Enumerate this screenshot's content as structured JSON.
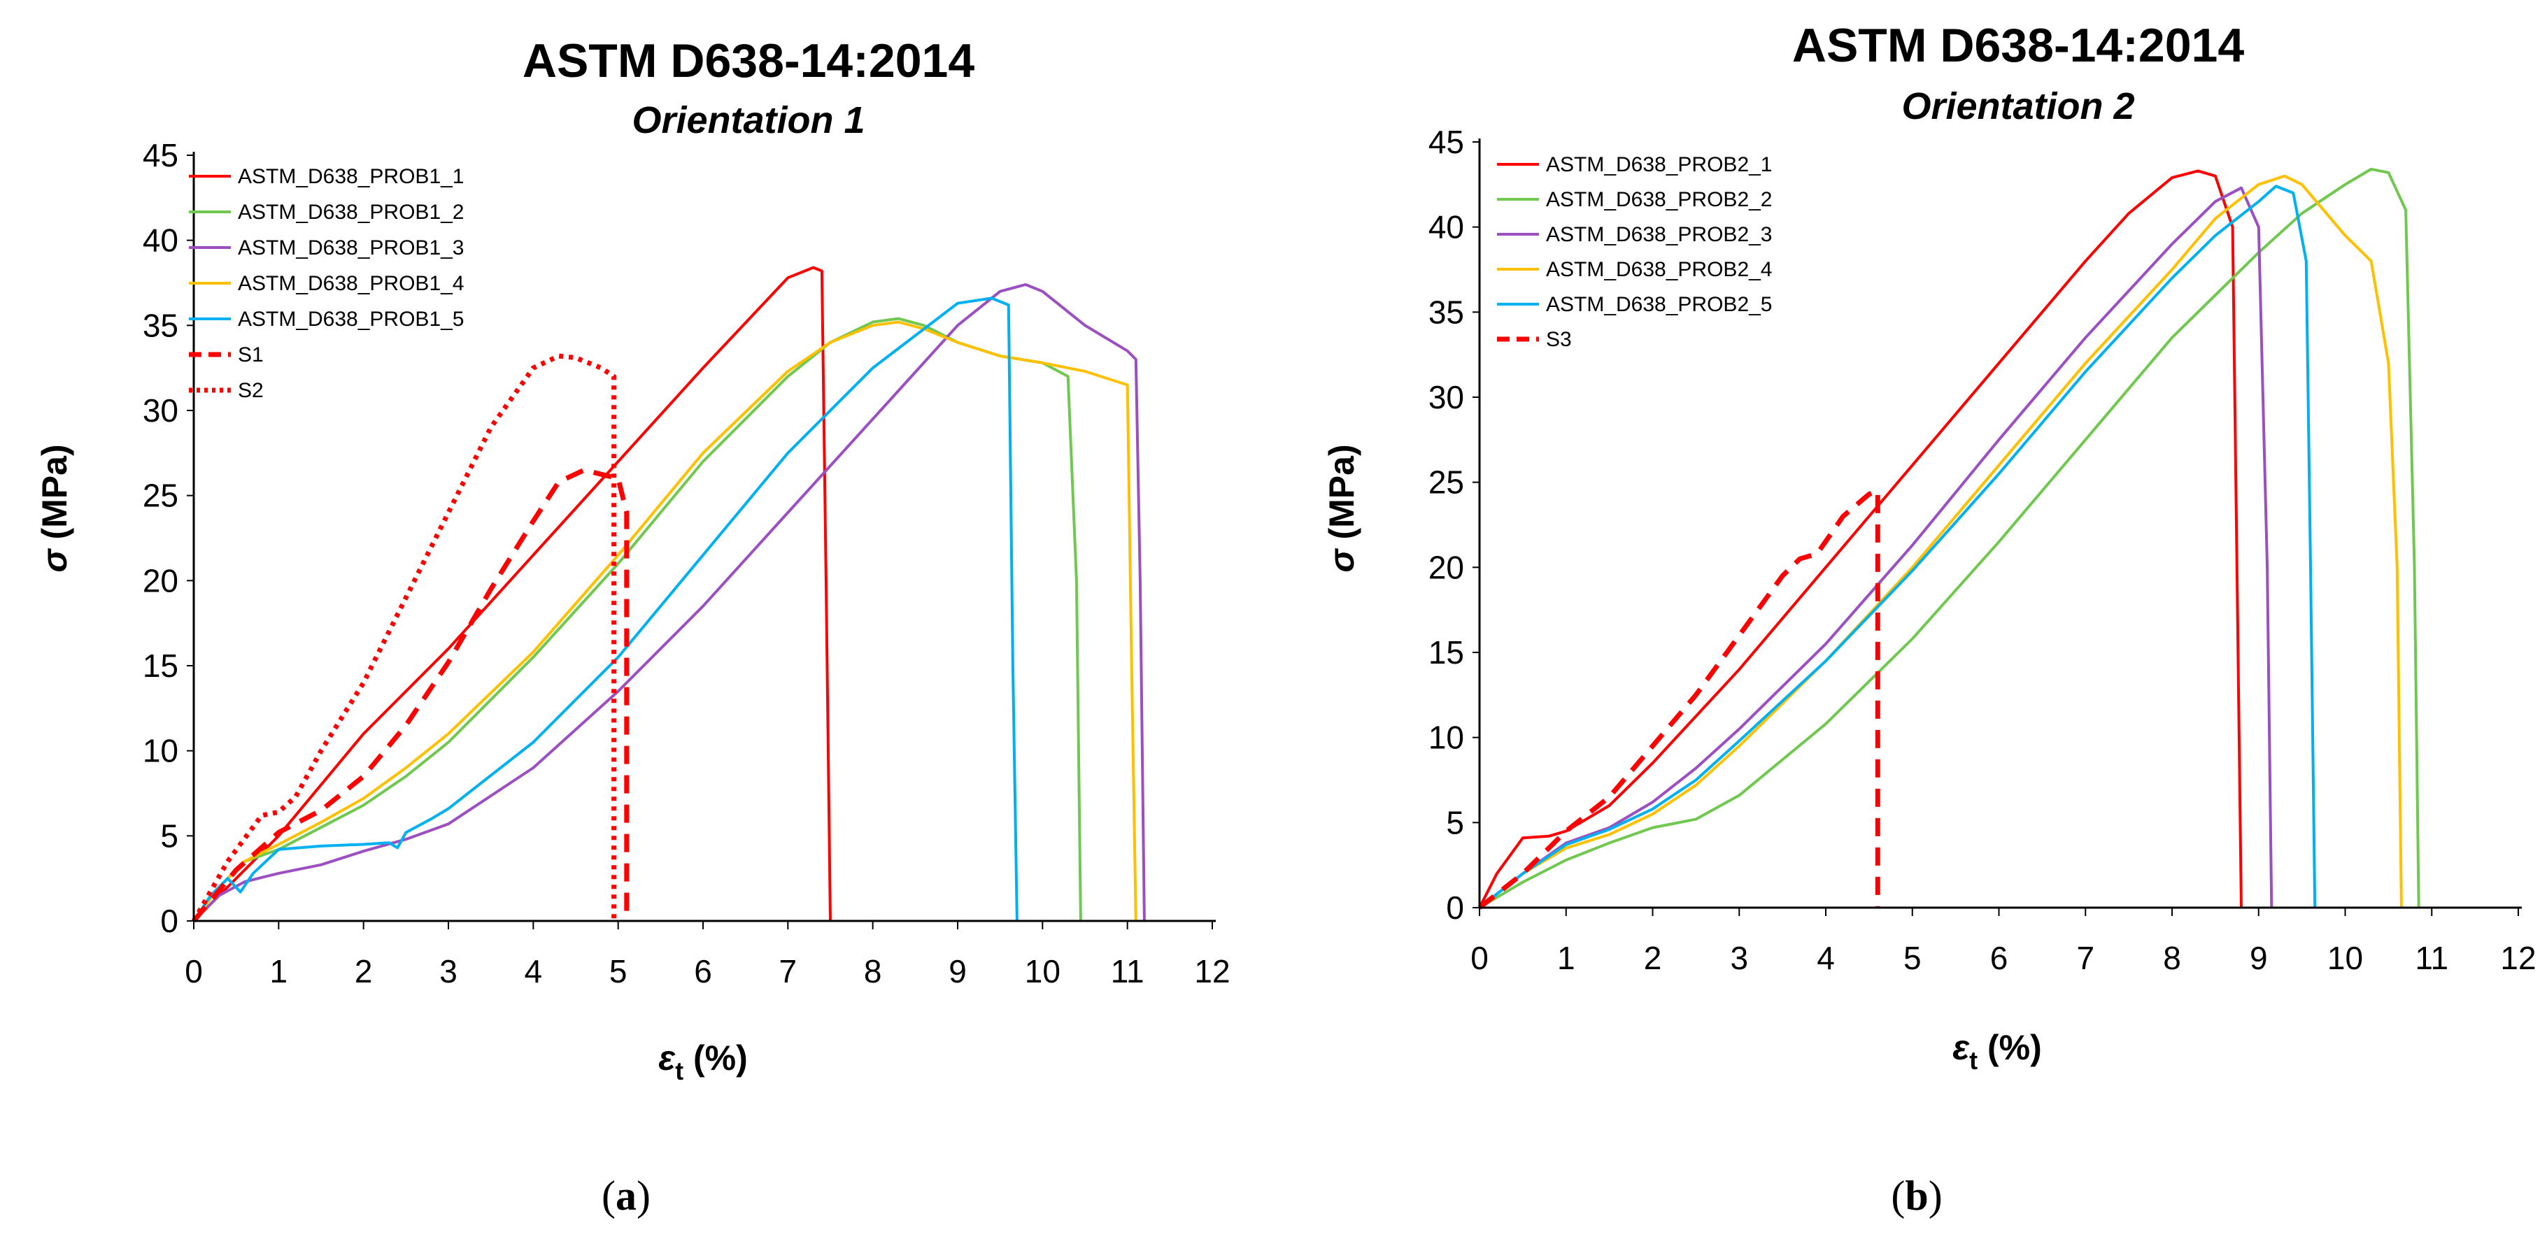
{
  "figure": {
    "panel_labels": [
      {
        "open": "(",
        "letter": "a",
        "close": ")"
      },
      {
        "open": "(",
        "letter": "b",
        "close": ")"
      }
    ]
  },
  "chart_data": [
    {
      "type": "line",
      "title": "ASTM D638-14:2014",
      "subtitle": "Orientation 1",
      "xlabel": "εt (%)",
      "xlabel_symbol": "ε",
      "xlabel_subscript": "t",
      "xlabel_unit": "(%)",
      "ylabel": "σ (MPa)",
      "ylabel_symbol": "σ",
      "ylabel_unit": "(MPa)",
      "xlim": [
        0,
        12
      ],
      "ylim": [
        0,
        45
      ],
      "xticks": [
        0,
        1,
        2,
        3,
        4,
        5,
        6,
        7,
        8,
        9,
        10,
        11,
        12
      ],
      "yticks": [
        0,
        5,
        10,
        15,
        20,
        25,
        30,
        35,
        40,
        45
      ],
      "legend_position": "top-left",
      "series": [
        {
          "name": "ASTM_D638_PROB1_1",
          "color": "#ff0000",
          "style": "solid",
          "x": [
            0,
            0.3,
            0.6,
            1.0,
            1.5,
            2.0,
            3.0,
            4.0,
            5.0,
            6.0,
            7.0,
            7.3,
            7.4,
            7.45,
            7.5
          ],
          "y": [
            0,
            1.5,
            3,
            5,
            8,
            11,
            16,
            21.5,
            27,
            32.5,
            37.8,
            38.4,
            38.2,
            20,
            0
          ]
        },
        {
          "name": "ASTM_D638_PROB1_2",
          "color": "#70c850",
          "style": "solid",
          "x": [
            0,
            0.3,
            0.6,
            1.0,
            1.5,
            2.0,
            2.5,
            3.0,
            4.0,
            5.0,
            6.0,
            7.0,
            7.5,
            8.0,
            8.3,
            8.6,
            9.0,
            9.5,
            10.0,
            10.3,
            10.4,
            10.45
          ],
          "y": [
            0,
            2,
            3.5,
            4.2,
            5.5,
            6.8,
            8.5,
            10.5,
            15.5,
            21,
            27,
            32,
            34,
            35.2,
            35.4,
            35,
            34,
            33.2,
            32.8,
            32,
            20,
            0
          ]
        },
        {
          "name": "ASTM_D638_PROB1_3",
          "color": "#9b4fc0",
          "style": "solid",
          "x": [
            0,
            0.3,
            0.6,
            1.0,
            1.5,
            2.0,
            2.5,
            3.0,
            4.0,
            5.0,
            6.0,
            7.0,
            8.0,
            9.0,
            9.5,
            9.8,
            10.0,
            10.5,
            11.0,
            11.1,
            11.15,
            11.2
          ],
          "y": [
            0,
            1.5,
            2.3,
            2.8,
            3.3,
            4.1,
            4.8,
            5.7,
            9,
            13.5,
            18.5,
            24,
            29.5,
            35,
            37,
            37.4,
            37,
            35,
            33.5,
            33,
            20,
            0
          ]
        },
        {
          "name": "ASTM_D638_PROB1_4",
          "color": "#ffc000",
          "style": "solid",
          "x": [
            0,
            0.3,
            0.6,
            1.0,
            1.5,
            2.0,
            2.5,
            3.0,
            4.0,
            5.0,
            6.0,
            7.0,
            7.5,
            8.0,
            8.3,
            8.6,
            9.0,
            9.5,
            10.0,
            10.5,
            11.0,
            11.05,
            11.1
          ],
          "y": [
            0,
            2,
            3.5,
            4.5,
            5.8,
            7.2,
            9,
            11,
            15.8,
            21.5,
            27.5,
            32.3,
            34,
            35,
            35.2,
            34.8,
            34,
            33.2,
            32.8,
            32.3,
            31.5,
            15,
            0
          ]
        },
        {
          "name": "ASTM_D638_PROB1_5",
          "color": "#00b0f0",
          "style": "solid",
          "x": [
            0,
            0.2,
            0.4,
            0.55,
            0.7,
            1.0,
            1.5,
            2.0,
            2.3,
            2.4,
            2.5,
            2.8,
            3.0,
            4.0,
            5.0,
            6.0,
            7.0,
            8.0,
            9.0,
            9.4,
            9.6,
            9.65,
            9.7
          ],
          "y": [
            0,
            1.5,
            2.5,
            1.7,
            2.8,
            4.2,
            4.4,
            4.5,
            4.6,
            4.3,
            5.2,
            6.0,
            6.6,
            10.5,
            15.5,
            21.5,
            27.5,
            32.5,
            36.3,
            36.6,
            36.2,
            15,
            0
          ]
        },
        {
          "name": "S1",
          "color": "#ff0000",
          "style": "dashed",
          "x": [
            0,
            0.5,
            1.0,
            1.5,
            2.0,
            2.5,
            3.0,
            3.5,
            4.0,
            4.3,
            4.6,
            5.0,
            5.1,
            5.1
          ],
          "y": [
            0,
            3,
            5.2,
            6.5,
            8.5,
            11.5,
            15.2,
            19.5,
            23.5,
            25.8,
            26.5,
            26,
            24,
            0
          ]
        },
        {
          "name": "S2",
          "color": "#ff0000",
          "style": "dotted",
          "x": [
            0,
            0.4,
            0.8,
            1.0,
            1.2,
            1.5,
            2.0,
            2.5,
            3.0,
            3.5,
            4.0,
            4.3,
            4.5,
            4.8,
            4.95,
            4.95
          ],
          "y": [
            0,
            3.5,
            6.2,
            6.4,
            7.3,
            10,
            14,
            19,
            24,
            29,
            32.5,
            33.2,
            33.1,
            32.5,
            32,
            0
          ]
        }
      ]
    },
    {
      "type": "line",
      "title": "ASTM D638-14:2014",
      "subtitle": "Orientation 2",
      "xlabel": "εt (%)",
      "xlabel_symbol": "ε",
      "xlabel_subscript": "t",
      "xlabel_unit": "(%)",
      "ylabel": "σ (MPa)",
      "ylabel_symbol": "σ",
      "ylabel_unit": "(MPa)",
      "xlim": [
        0,
        12
      ],
      "ylim": [
        0,
        45
      ],
      "xticks": [
        0,
        1,
        2,
        3,
        4,
        5,
        6,
        7,
        8,
        9,
        10,
        11,
        12
      ],
      "yticks": [
        0,
        5,
        10,
        15,
        20,
        25,
        30,
        35,
        40,
        45
      ],
      "legend_position": "top-left",
      "series": [
        {
          "name": "ASTM_D638_PROB2_1",
          "color": "#ff0000",
          "style": "solid",
          "x": [
            0,
            0.2,
            0.5,
            0.8,
            1.0,
            1.5,
            2.0,
            3.0,
            4.0,
            5.0,
            6.0,
            7.0,
            7.5,
            8.0,
            8.3,
            8.5,
            8.7,
            8.75,
            8.8
          ],
          "y": [
            0,
            2,
            4.1,
            4.2,
            4.5,
            6,
            8.5,
            14,
            20,
            26,
            32,
            38,
            40.8,
            42.9,
            43.3,
            43,
            40,
            20,
            0
          ]
        },
        {
          "name": "ASTM_D638_PROB2_2",
          "color": "#70c850",
          "style": "solid",
          "x": [
            0,
            0.5,
            1.0,
            1.5,
            2.0,
            2.5,
            3.0,
            4.0,
            5.0,
            6.0,
            7.0,
            8.0,
            9.0,
            9.5,
            10.0,
            10.3,
            10.5,
            10.7,
            10.8,
            10.85
          ],
          "y": [
            0,
            1.5,
            2.8,
            3.8,
            4.7,
            5.2,
            6.6,
            10.8,
            15.8,
            21.5,
            27.5,
            33.5,
            38.5,
            40.8,
            42.5,
            43.4,
            43.2,
            41,
            20,
            0
          ]
        },
        {
          "name": "ASTM_D638_PROB2_3",
          "color": "#9b4fc0",
          "style": "solid",
          "x": [
            0,
            0.5,
            1.0,
            1.5,
            2.0,
            2.5,
            3.0,
            4.0,
            5.0,
            6.0,
            7.0,
            8.0,
            8.5,
            8.8,
            9.0,
            9.1,
            9.15
          ],
          "y": [
            0,
            2,
            3.8,
            4.7,
            6.2,
            8.2,
            10.5,
            15.5,
            21.3,
            27.5,
            33.5,
            39,
            41.5,
            42.3,
            40,
            20,
            0
          ]
        },
        {
          "name": "ASTM_D638_PROB2_4",
          "color": "#ffc000",
          "style": "solid",
          "x": [
            0,
            0.5,
            1.0,
            1.5,
            2.0,
            2.5,
            3.0,
            4.0,
            5.0,
            6.0,
            7.0,
            8.0,
            8.5,
            9.0,
            9.3,
            9.5,
            10.0,
            10.3,
            10.5,
            10.6,
            10.65
          ],
          "y": [
            0,
            2,
            3.5,
            4.3,
            5.5,
            7.2,
            9.5,
            14.5,
            20,
            26,
            32,
            37.5,
            40.5,
            42.5,
            43,
            42.5,
            39.5,
            38,
            32,
            20,
            0
          ]
        },
        {
          "name": "ASTM_D638_PROB2_5",
          "color": "#00b0f0",
          "style": "solid",
          "x": [
            0,
            0.5,
            1.0,
            1.5,
            2.0,
            2.5,
            3.0,
            4.0,
            5.0,
            6.0,
            7.0,
            8.0,
            8.5,
            9.0,
            9.2,
            9.4,
            9.55,
            9.6,
            9.65
          ],
          "y": [
            0,
            2,
            3.7,
            4.6,
            5.8,
            7.5,
            9.8,
            14.5,
            19.8,
            25.5,
            31.5,
            37,
            39.5,
            41.5,
            42.4,
            42,
            38,
            20,
            0
          ]
        },
        {
          "name": "S3",
          "color": "#ff0000",
          "style": "dashed",
          "x": [
            0,
            0.5,
            1.0,
            1.5,
            2.0,
            2.5,
            3.0,
            3.5,
            3.7,
            3.9,
            4.2,
            4.5,
            4.6,
            4.6
          ],
          "y": [
            0,
            2,
            4.5,
            6.5,
            9.5,
            12.5,
            16,
            19.5,
            20.5,
            20.8,
            23,
            24.3,
            24.5,
            0
          ]
        }
      ]
    }
  ]
}
